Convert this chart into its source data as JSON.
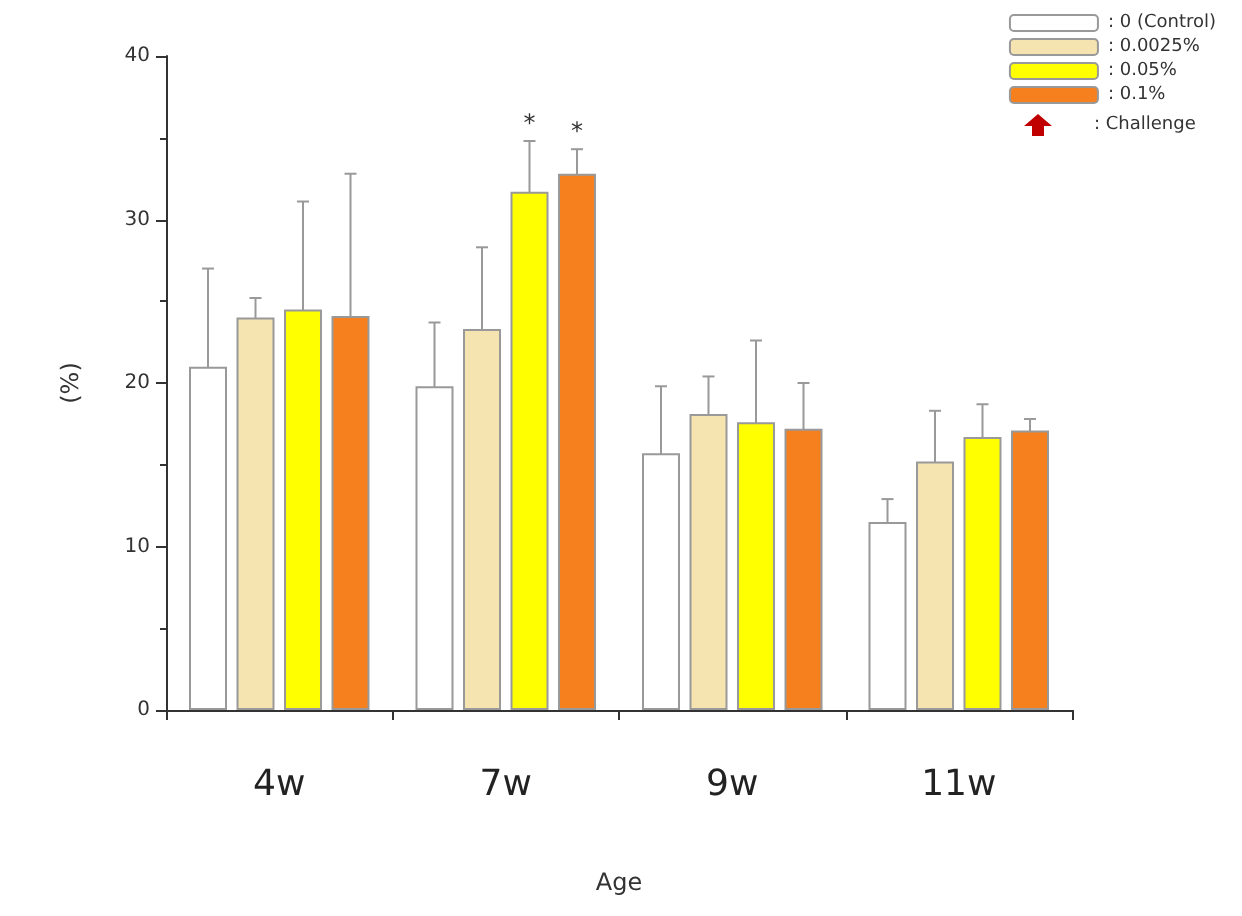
{
  "chart_data": {
    "type": "bar",
    "xlabel": "Age",
    "ylabel": "(%)",
    "categories": [
      "4w",
      "7w",
      "9w",
      "11w"
    ],
    "series": [
      {
        "name": ": 0 (Control)",
        "color": "#ffffff",
        "values": [
          21,
          19.8,
          15.7,
          11.5
        ],
        "errors": [
          6,
          3.9,
          4.1,
          1.4
        ]
      },
      {
        "name": ": 0.0025%",
        "color": "#f5e3b0",
        "values": [
          24,
          23.3,
          18.1,
          15.2
        ],
        "errors": [
          1.2,
          5,
          2.3,
          3.1
        ]
      },
      {
        "name": ": 0.05%",
        "color": "#ffff00",
        "values": [
          24.5,
          31.7,
          17.6,
          16.7
        ],
        "errors": [
          6.6,
          3.1,
          5,
          2
        ],
        "value_labels": [
          null,
          "*",
          null,
          null
        ]
      },
      {
        "name": ": 0.1%",
        "color": "#f7801e",
        "values": [
          24.1,
          32.8,
          17.2,
          17.1
        ],
        "errors": [
          8.7,
          1.5,
          2.8,
          0.7
        ],
        "value_labels": [
          null,
          "*",
          null,
          null
        ]
      }
    ],
    "ylim": [
      0,
      40
    ],
    "yticks": [
      0,
      10,
      20,
      30,
      40
    ],
    "grid": false,
    "legend": "top right",
    "annotations": [
      ": Challenge"
    ]
  }
}
